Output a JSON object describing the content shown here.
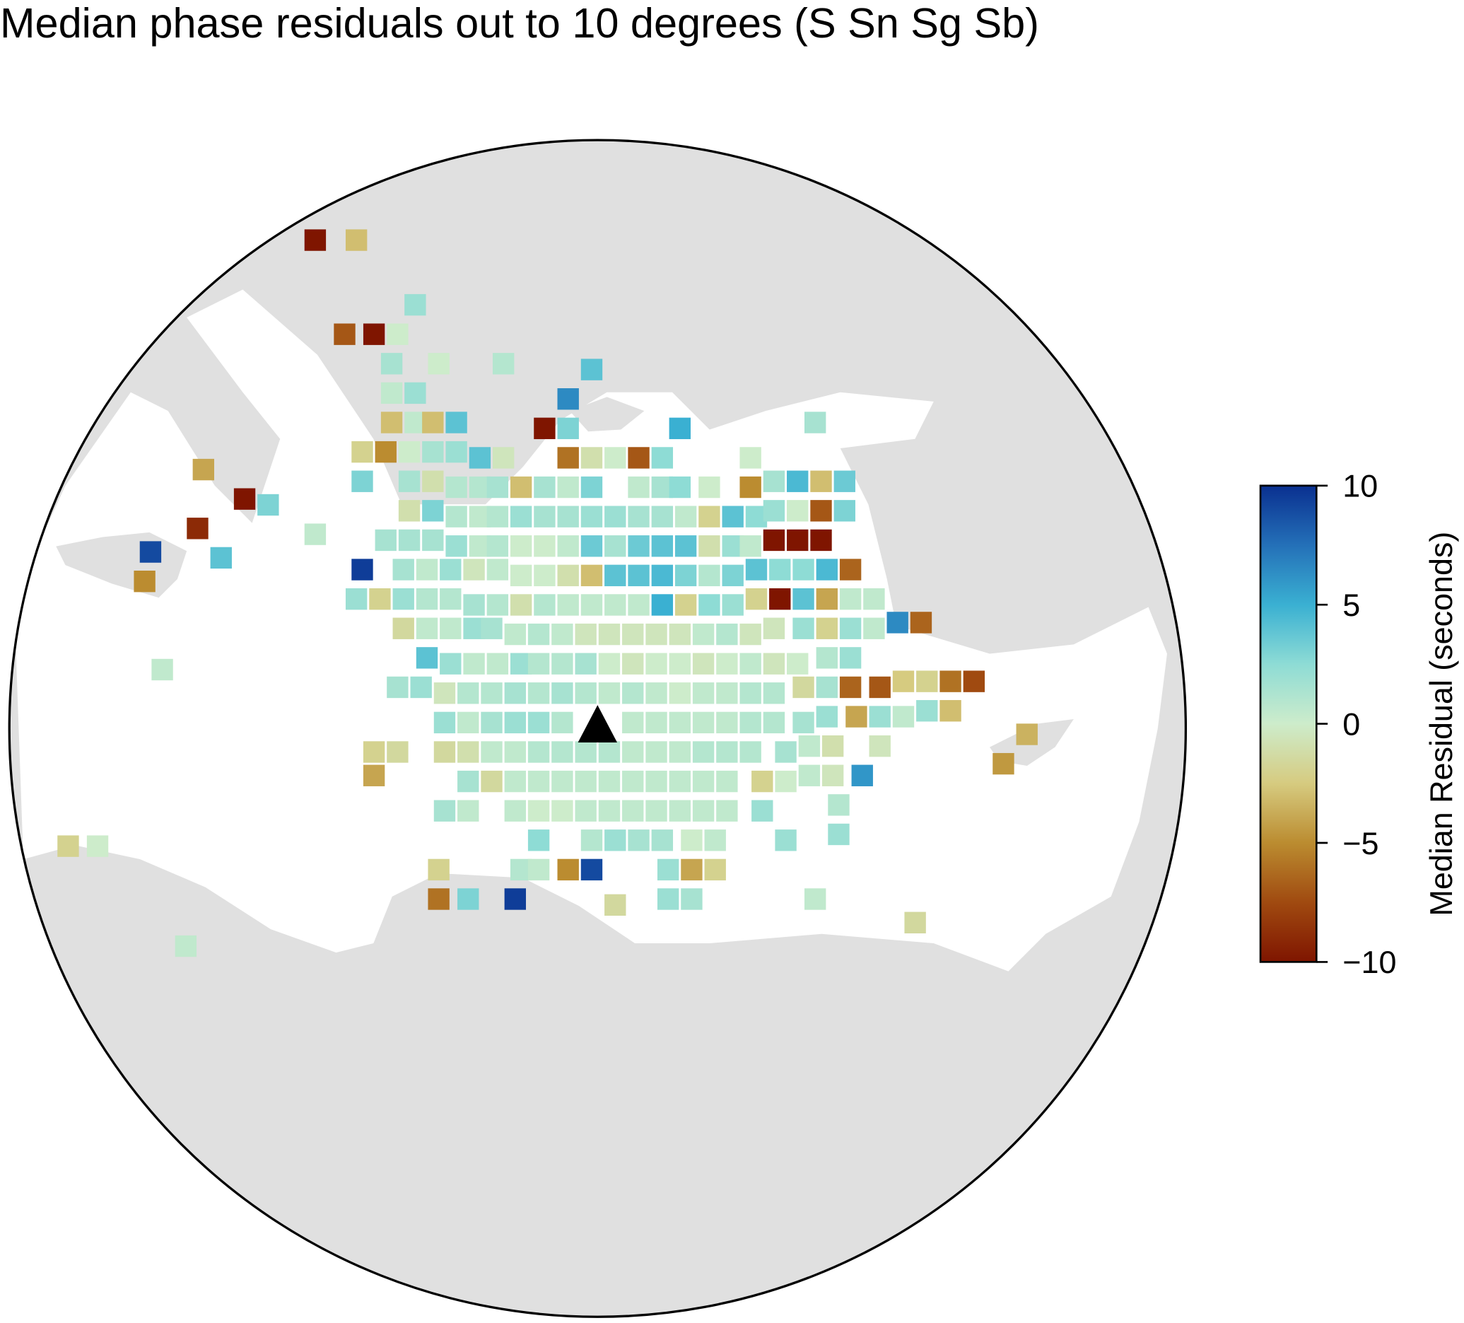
{
  "chart_data": {
    "type": "map",
    "title": "Median phase residuals out to 10 degrees (S Sn Sg Sb)",
    "colorbar_label": "Median Residual (seconds)",
    "xlim": [
      -10,
      10
    ],
    "ylim": [
      -10,
      10
    ],
    "clim": [
      -10,
      10
    ],
    "cticks": [
      {
        "value": -10,
        "label": "−10"
      },
      {
        "value": -5,
        "label": "−5"
      },
      0,
      5,
      10
    ],
    "colormap": [
      "#7f1500",
      "#a04a10",
      "#bb8c30",
      "#d6cb80",
      "#cdeccb",
      "#8edcd5",
      "#3ab0d2",
      "#2470b8",
      "#0a3090"
    ],
    "x": [
      -4.8,
      -4.1,
      -3.1,
      -4.3,
      -3.8,
      -3.4,
      -3.5,
      -2.7,
      -1.6,
      -0.1,
      -3.5,
      -3.1,
      -0.5,
      -3.5,
      -3.1,
      -2.8,
      -2.4,
      -0.9,
      -0.5,
      1.4,
      3.7,
      -4.0,
      -3.6,
      -3.2,
      -2.8,
      -2.4,
      -2.0,
      -1.6,
      -0.5,
      -0.1,
      0.3,
      0.7,
      1.1,
      2.6,
      -6.7,
      -4.0,
      -3.2,
      -2.8,
      -2.4,
      -2.0,
      -1.7,
      -1.3,
      -0.9,
      -0.5,
      -0.1,
      0.7,
      1.1,
      1.4,
      1.9,
      2.6,
      3.0,
      3.4,
      3.8,
      4.2,
      -6.0,
      -5.6,
      -3.2,
      -2.8,
      -2.4,
      -2.0,
      -1.7,
      -1.3,
      -0.9,
      -0.5,
      -0.1,
      0.3,
      0.7,
      1.1,
      1.5,
      1.9,
      2.3,
      2.7,
      3.0,
      3.4,
      3.8,
      4.2,
      -6.8,
      -4.8,
      -7.6,
      -6.4,
      -3.6,
      -3.2,
      -2.8,
      -2.4,
      -2.0,
      -1.7,
      -1.3,
      -0.9,
      -0.5,
      -0.1,
      0.3,
      0.7,
      1.1,
      1.5,
      1.9,
      2.3,
      2.6,
      3.0,
      3.4,
      3.8,
      -7.7,
      -4.0,
      -3.3,
      -2.9,
      -2.5,
      -2.1,
      -1.7,
      -1.3,
      -0.9,
      -0.5,
      -0.1,
      0.3,
      0.7,
      1.1,
      1.5,
      1.9,
      2.3,
      2.7,
      3.1,
      3.5,
      3.9,
      4.3,
      -4.1,
      -3.7,
      -3.3,
      -2.9,
      -2.5,
      -2.1,
      -1.7,
      -1.3,
      -0.9,
      -0.5,
      -0.1,
      0.3,
      0.7,
      1.1,
      1.5,
      1.9,
      2.3,
      2.7,
      3.1,
      3.5,
      3.9,
      4.3,
      4.7,
      -3.3,
      -2.9,
      -2.5,
      -2.1,
      -1.8,
      -1.4,
      -1.0,
      -0.6,
      -0.2,
      0.2,
      0.6,
      1.0,
      1.4,
      1.8,
      2.2,
      2.6,
      3.0,
      3.5,
      3.9,
      4.3,
      4.7,
      5.1,
      5.5,
      -7.4,
      -2.9,
      -2.5,
      -2.1,
      -1.7,
      -1.3,
      -1.0,
      -0.6,
      -0.2,
      0.2,
      0.6,
      1.0,
      1.4,
      1.8,
      2.2,
      2.6,
      3.0,
      3.4,
      3.9,
      4.3,
      -3.4,
      -3.0,
      -2.6,
      -2.2,
      -1.8,
      -1.4,
      -1.0,
      -0.6,
      -0.2,
      0.2,
      0.6,
      1.0,
      1.4,
      1.8,
      2.2,
      2.6,
      3.0,
      3.5,
      3.9,
      4.3,
      4.8,
      5.2,
      5.6,
      6.0,
      6.4,
      -2.6,
      -2.2,
      -1.8,
      -1.4,
      -1.0,
      -0.6,
      0.6,
      1.0,
      1.4,
      1.8,
      2.2,
      2.6,
      3.0,
      3.5,
      3.9,
      4.4,
      4.8,
      5.2,
      5.6,
      6.0,
      7.3,
      -3.8,
      -3.4,
      -2.6,
      -2.2,
      -1.8,
      -1.4,
      -1.0,
      -0.6,
      -0.2,
      0.2,
      0.6,
      1.0,
      1.4,
      1.8,
      2.2,
      2.6,
      3.2,
      3.6,
      4.0,
      4.8,
      6.9,
      -3.8,
      -2.2,
      -1.8,
      -1.4,
      -1.0,
      -0.6,
      -0.2,
      0.2,
      0.6,
      1.0,
      1.4,
      1.8,
      2.2,
      2.8,
      3.2,
      3.6,
      4.0,
      4.5,
      -2.6,
      -2.2,
      -1.4,
      -1.0,
      -0.6,
      -0.2,
      0.2,
      0.6,
      1.0,
      1.4,
      1.8,
      2.2,
      2.8,
      4.1,
      -9.0,
      -8.5,
      -1.0,
      -0.1,
      0.3,
      0.7,
      1.1,
      1.6,
      2.0,
      3.2,
      4.1,
      -2.7,
      -1.3,
      -1.0,
      -0.5,
      -0.1,
      1.2,
      1.6,
      2.0,
      -2.7,
      -2.2,
      -1.4,
      0.3,
      1.2,
      1.6,
      3.7,
      5.4,
      -7.0
    ],
    "y": [
      8.3,
      8.3,
      7.2,
      6.7,
      6.7,
      6.7,
      6.2,
      6.2,
      6.2,
      6.1,
      5.7,
      5.7,
      5.6,
      5.2,
      5.2,
      5.2,
      5.2,
      5.1,
      5.1,
      5.1,
      5.2,
      4.7,
      4.7,
      4.7,
      4.7,
      4.7,
      4.6,
      4.6,
      4.6,
      4.6,
      4.6,
      4.6,
      4.6,
      4.6,
      4.4,
      4.2,
      4.2,
      4.2,
      4.1,
      4.1,
      4.1,
      4.1,
      4.1,
      4.1,
      4.1,
      4.1,
      4.1,
      4.1,
      4.1,
      4.1,
      4.2,
      4.2,
      4.2,
      4.2,
      3.9,
      3.8,
      3.7,
      3.7,
      3.6,
      3.6,
      3.6,
      3.6,
      3.6,
      3.6,
      3.6,
      3.6,
      3.6,
      3.6,
      3.6,
      3.6,
      3.6,
      3.6,
      3.7,
      3.7,
      3.7,
      3.7,
      3.4,
      3.3,
      3.0,
      2.9,
      3.2,
      3.2,
      3.2,
      3.1,
      3.1,
      3.1,
      3.1,
      3.1,
      3.1,
      3.1,
      3.1,
      3.1,
      3.1,
      3.1,
      3.1,
      3.1,
      3.1,
      3.2,
      3.2,
      3.2,
      2.5,
      2.7,
      2.7,
      2.7,
      2.7,
      2.7,
      2.7,
      2.6,
      2.6,
      2.6,
      2.6,
      2.6,
      2.6,
      2.6,
      2.6,
      2.6,
      2.6,
      2.7,
      2.7,
      2.7,
      2.7,
      2.7,
      2.2,
      2.2,
      2.2,
      2.2,
      2.2,
      2.1,
      2.1,
      2.1,
      2.1,
      2.1,
      2.1,
      2.1,
      2.1,
      2.1,
      2.1,
      2.1,
      2.1,
      2.2,
      2.2,
      2.2,
      2.2,
      2.2,
      2.2,
      1.7,
      1.7,
      1.7,
      1.7,
      1.7,
      1.6,
      1.6,
      1.6,
      1.6,
      1.6,
      1.6,
      1.6,
      1.6,
      1.6,
      1.6,
      1.6,
      1.7,
      1.7,
      1.7,
      1.7,
      1.7,
      1.8,
      1.8,
      1.0,
      1.2,
      1.1,
      1.1,
      1.1,
      1.1,
      1.1,
      1.1,
      1.1,
      1.1,
      1.1,
      1.1,
      1.1,
      1.1,
      1.1,
      1.1,
      1.1,
      1.1,
      1.2,
      1.2,
      0.7,
      0.7,
      0.6,
      0.6,
      0.6,
      0.6,
      0.6,
      0.6,
      0.6,
      0.6,
      0.6,
      0.6,
      0.6,
      0.6,
      0.6,
      0.6,
      0.6,
      0.7,
      0.7,
      0.7,
      0.7,
      0.8,
      0.8,
      0.8,
      0.8,
      0.1,
      0.1,
      0.1,
      0.1,
      0.1,
      0.1,
      0.1,
      0.1,
      0.1,
      0.1,
      0.1,
      0.1,
      0.1,
      0.1,
      0.2,
      0.2,
      0.2,
      0.2,
      0.3,
      0.3,
      -0.1,
      -0.4,
      -0.4,
      -0.4,
      -0.4,
      -0.4,
      -0.4,
      -0.4,
      -0.4,
      -0.4,
      -0.4,
      -0.4,
      -0.4,
      -0.4,
      -0.4,
      -0.4,
      -0.4,
      -0.4,
      -0.3,
      -0.3,
      -0.3,
      -0.6,
      -0.8,
      -0.9,
      -0.9,
      -0.9,
      -0.9,
      -0.9,
      -0.9,
      -0.9,
      -0.9,
      -0.9,
      -0.9,
      -0.9,
      -0.9,
      -0.9,
      -0.9,
      -0.8,
      -0.8,
      -0.8,
      -1.4,
      -1.4,
      -1.4,
      -1.4,
      -1.4,
      -1.4,
      -1.4,
      -1.4,
      -1.4,
      -1.4,
      -1.4,
      -1.4,
      -1.4,
      -1.3,
      -2.0,
      -2.0,
      -1.9,
      -1.9,
      -1.9,
      -1.9,
      -1.9,
      -1.9,
      -1.9,
      -1.9,
      -1.8,
      -2.4,
      -2.4,
      -2.4,
      -2.4,
      -2.4,
      -2.4,
      -2.4,
      -2.4,
      -2.9,
      -2.9,
      -2.9,
      -3.0,
      -2.9,
      -2.9,
      -2.9,
      -3.3,
      -3.7
    ],
    "values": [
      -10,
      -3,
      2,
      -7,
      -10,
      0,
      1.5,
      0,
      1,
      4,
      0.5,
      2,
      6.5,
      -3,
      0.5,
      -3,
      4,
      -10,
      3,
      5,
      1.5,
      -2,
      -5,
      0,
      1.5,
      2,
      4,
      -0.5,
      -6,
      -1,
      0,
      -7,
      2.5,
      0,
      -4,
      3,
      1.5,
      -1,
      1,
      1,
      1.5,
      -3,
      1.5,
      0.5,
      3,
      0.5,
      1.5,
      2.5,
      0,
      -5,
      1.5,
      4.5,
      -3,
      3.5,
      -10,
      3,
      -1,
      3,
      1,
      0.5,
      1,
      2,
      1.5,
      1.5,
      2,
      2,
      1.5,
      1.5,
      0.5,
      -2,
      4,
      2.5,
      2,
      0,
      -7,
      3,
      -9,
      0.5,
      9,
      4,
      1.5,
      1.5,
      1.5,
      2,
      0.5,
      1,
      0,
      0,
      0.5,
      3.5,
      1.5,
      3.5,
      4,
      4,
      -1,
      2,
      0.5,
      -10,
      -10,
      -10,
      -5,
      9.5,
      1.5,
      0.5,
      2,
      -0.5,
      0.5,
      0,
      0,
      -1,
      -3,
      4,
      4,
      4.5,
      3,
      1,
      3,
      4,
      2.5,
      2.5,
      4.5,
      -6.5,
      2,
      -2,
      2,
      1,
      1,
      1.5,
      1,
      -1,
      1,
      0.5,
      0.5,
      0.5,
      0.5,
      5,
      -2,
      2.5,
      2,
      -2,
      -10,
      4,
      -4,
      0.5,
      0.5,
      -1.5,
      0.5,
      0.5,
      2,
      1.5,
      0.5,
      1,
      0.5,
      -0.5,
      -0.5,
      -0.5,
      -0.5,
      -0.5,
      0.5,
      1,
      -0.5,
      -0.5,
      2,
      -2,
      2,
      0.5,
      6.5,
      -6.5,
      0.5,
      4,
      2,
      0.5,
      0.5,
      2,
      1,
      1,
      1.5,
      0,
      -0.5,
      0,
      0,
      -0.5,
      0,
      0.5,
      -0.5,
      0,
      1,
      2,
      1.5,
      2,
      -0.5,
      1,
      1,
      1.5,
      1,
      1.5,
      1,
      0.5,
      1,
      0.5,
      0,
      0.5,
      0.5,
      1,
      1,
      -1.5,
      1.5,
      -6.5,
      -7,
      -2.5,
      -2,
      -6,
      -7.5,
      2,
      0.5,
      1.5,
      2,
      2,
      1,
      0.5,
      0.5,
      0.5,
      0.5,
      0.5,
      1,
      1,
      1.5,
      2,
      -4,
      2,
      0.5,
      2,
      -3,
      -3.5,
      -2,
      -1.5,
      -1.5,
      -1,
      0.5,
      0.5,
      1,
      1,
      1,
      1,
      0.5,
      0.5,
      0.5,
      1,
      1,
      1,
      1.5,
      0.5,
      -1,
      -0.5,
      -4.5,
      -4,
      1.5,
      -1.5,
      0.5,
      0.5,
      0.5,
      0.5,
      0.5,
      0.5,
      0.5,
      0.5,
      0.5,
      0.5,
      -2,
      0,
      0.5,
      -0.5,
      6,
      1.5,
      0.5,
      0.5,
      0,
      0,
      0.5,
      0.5,
      0.5,
      0.5,
      0.5,
      0.5,
      0.5,
      2,
      1,
      -2,
      0,
      2.5,
      1,
      2,
      1.5,
      1.5,
      0,
      0.5,
      2,
      2,
      -2,
      1,
      0.5,
      -5,
      9,
      2,
      -4,
      -2,
      -6,
      3,
      9.5,
      -1.5,
      2,
      1.5,
      0.5,
      -1.5,
      0.5
    ]
  }
}
